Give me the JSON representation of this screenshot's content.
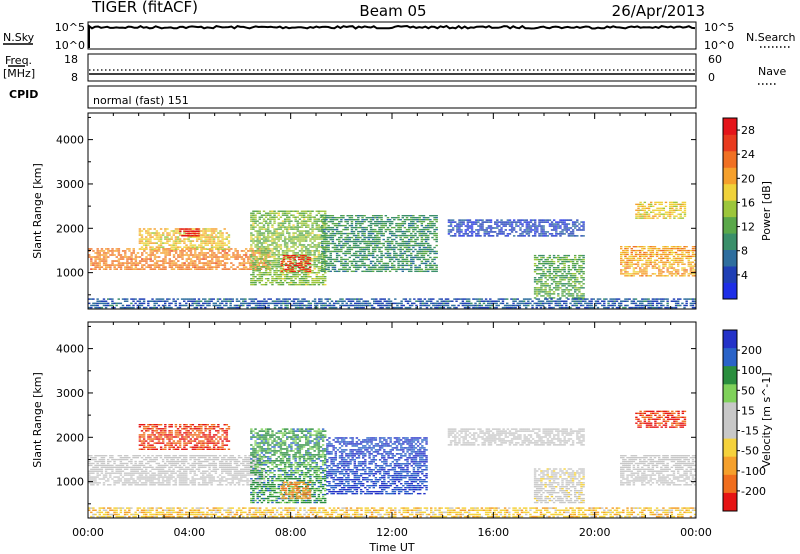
{
  "header": {
    "radar": "TIGER (fitACF)",
    "beam": "Beam 05",
    "date": "26/Apr/2013"
  },
  "strips": {
    "nsky_label": "N.Sky",
    "nsky_ticks": [
      "10^5",
      "10^0"
    ],
    "nsearch_label": "N.Search",
    "nsearch_ticks": [
      "10^5",
      "10^0"
    ],
    "freq_label": "Freq.",
    "freq_unit": "[MHz]",
    "freq_ticks": [
      "18",
      "8"
    ],
    "nave_label": "Nave",
    "nave_ticks": [
      "60",
      "0"
    ],
    "cpid_label": "CPID",
    "cpid_text": "normal (fast) 151"
  },
  "colors": {
    "power_scale": [
      "#1e2ee6",
      "#1f3fb5",
      "#2e6e9e",
      "#3a8f6a",
      "#5aa84a",
      "#9cc63b",
      "#f0d23a",
      "#f5a02c",
      "#f07023",
      "#e83a1e",
      "#e4141a"
    ],
    "velocity_scale": [
      "#2432c8",
      "#2a63c8",
      "#2a8e3e",
      "#7fd15a",
      "#c8c8c8",
      "#c8c8c8",
      "#f5d23c",
      "#f5a02c",
      "#f06e1e",
      "#e61414"
    ]
  },
  "chart_data": [
    {
      "type": "heatmap",
      "panel": "power",
      "ylabel": "Slant Range [km]",
      "xlabel": "Time UT",
      "x_ticks": [
        "00:00",
        "04:00",
        "08:00",
        "12:00",
        "16:00",
        "20:00",
        "00:00"
      ],
      "y_ticks": [
        "1000",
        "2000",
        "3000",
        "4000"
      ],
      "ylim": [
        180,
        4600
      ],
      "colorbar": {
        "label": "Power [dB]",
        "ticks": [
          "4",
          "8",
          "12",
          "16",
          "20",
          "24",
          "28"
        ],
        "range": [
          0,
          30
        ]
      },
      "regions": [
        {
          "t0": 0.0,
          "t1": 7.2,
          "r0": 1050,
          "r1": 1550,
          "value": 22
        },
        {
          "t0": 2.0,
          "t1": 5.6,
          "r0": 1500,
          "r1": 2000,
          "value": 18
        },
        {
          "t0": 3.6,
          "t1": 4.4,
          "r0": 1800,
          "r1": 2000,
          "value": 28
        },
        {
          "t0": 6.4,
          "t1": 9.4,
          "r0": 700,
          "r1": 2400,
          "value": 14
        },
        {
          "t0": 7.6,
          "t1": 8.8,
          "r0": 1000,
          "r1": 1400,
          "value": 26
        },
        {
          "t0": 9.2,
          "t1": 13.8,
          "r0": 1000,
          "r1": 2300,
          "value": 10
        },
        {
          "t0": 14.2,
          "t1": 19.6,
          "r0": 1800,
          "r1": 2200,
          "value": 4
        },
        {
          "t0": 17.6,
          "t1": 19.6,
          "r0": 400,
          "r1": 1400,
          "value": 12
        },
        {
          "t0": 21.0,
          "t1": 24.0,
          "r0": 900,
          "r1": 1600,
          "value": 20
        },
        {
          "t0": 21.6,
          "t1": 23.6,
          "r0": 2200,
          "r1": 2600,
          "value": 18
        },
        {
          "t0": 0.0,
          "t1": 24.0,
          "r0": 180,
          "r1": 420,
          "value": 6
        }
      ]
    },
    {
      "type": "heatmap",
      "panel": "velocity",
      "ylabel": "Slant Range [km]",
      "xlabel": "Time UT",
      "x_ticks": [
        "00:00",
        "04:00",
        "08:00",
        "12:00",
        "16:00",
        "20:00",
        "00:00"
      ],
      "y_ticks": [
        "1000",
        "2000",
        "3000",
        "4000"
      ],
      "ylim": [
        180,
        4600
      ],
      "colorbar": {
        "label": "Velocity [m s^-1]",
        "ticks": [
          "200",
          "100",
          "50",
          "15",
          "-15",
          "-50",
          "-100",
          "-200"
        ],
        "range": [
          -250,
          250
        ]
      },
      "regions": [
        {
          "t0": 0.0,
          "t1": 7.0,
          "r0": 900,
          "r1": 1600,
          "value": 0
        },
        {
          "t0": 2.0,
          "t1": 5.6,
          "r0": 1700,
          "r1": 2300,
          "value": -200
        },
        {
          "t0": 6.4,
          "t1": 9.4,
          "r0": 500,
          "r1": 2200,
          "value": 120
        },
        {
          "t0": 7.6,
          "t1": 8.8,
          "r0": 600,
          "r1": 1000,
          "value": -150
        },
        {
          "t0": 9.4,
          "t1": 13.4,
          "r0": 700,
          "r1": 2000,
          "value": 200
        },
        {
          "t0": 14.2,
          "t1": 19.6,
          "r0": 1800,
          "r1": 2200,
          "value": 0
        },
        {
          "t0": 17.6,
          "t1": 19.6,
          "r0": 500,
          "r1": 1300,
          "value": -20
        },
        {
          "t0": 21.0,
          "t1": 24.0,
          "r0": 900,
          "r1": 1600,
          "value": 0
        },
        {
          "t0": 21.6,
          "t1": 23.6,
          "r0": 2200,
          "r1": 2600,
          "value": -200
        },
        {
          "t0": 0.0,
          "t1": 24.0,
          "r0": 180,
          "r1": 420,
          "value": -80
        }
      ]
    }
  ]
}
